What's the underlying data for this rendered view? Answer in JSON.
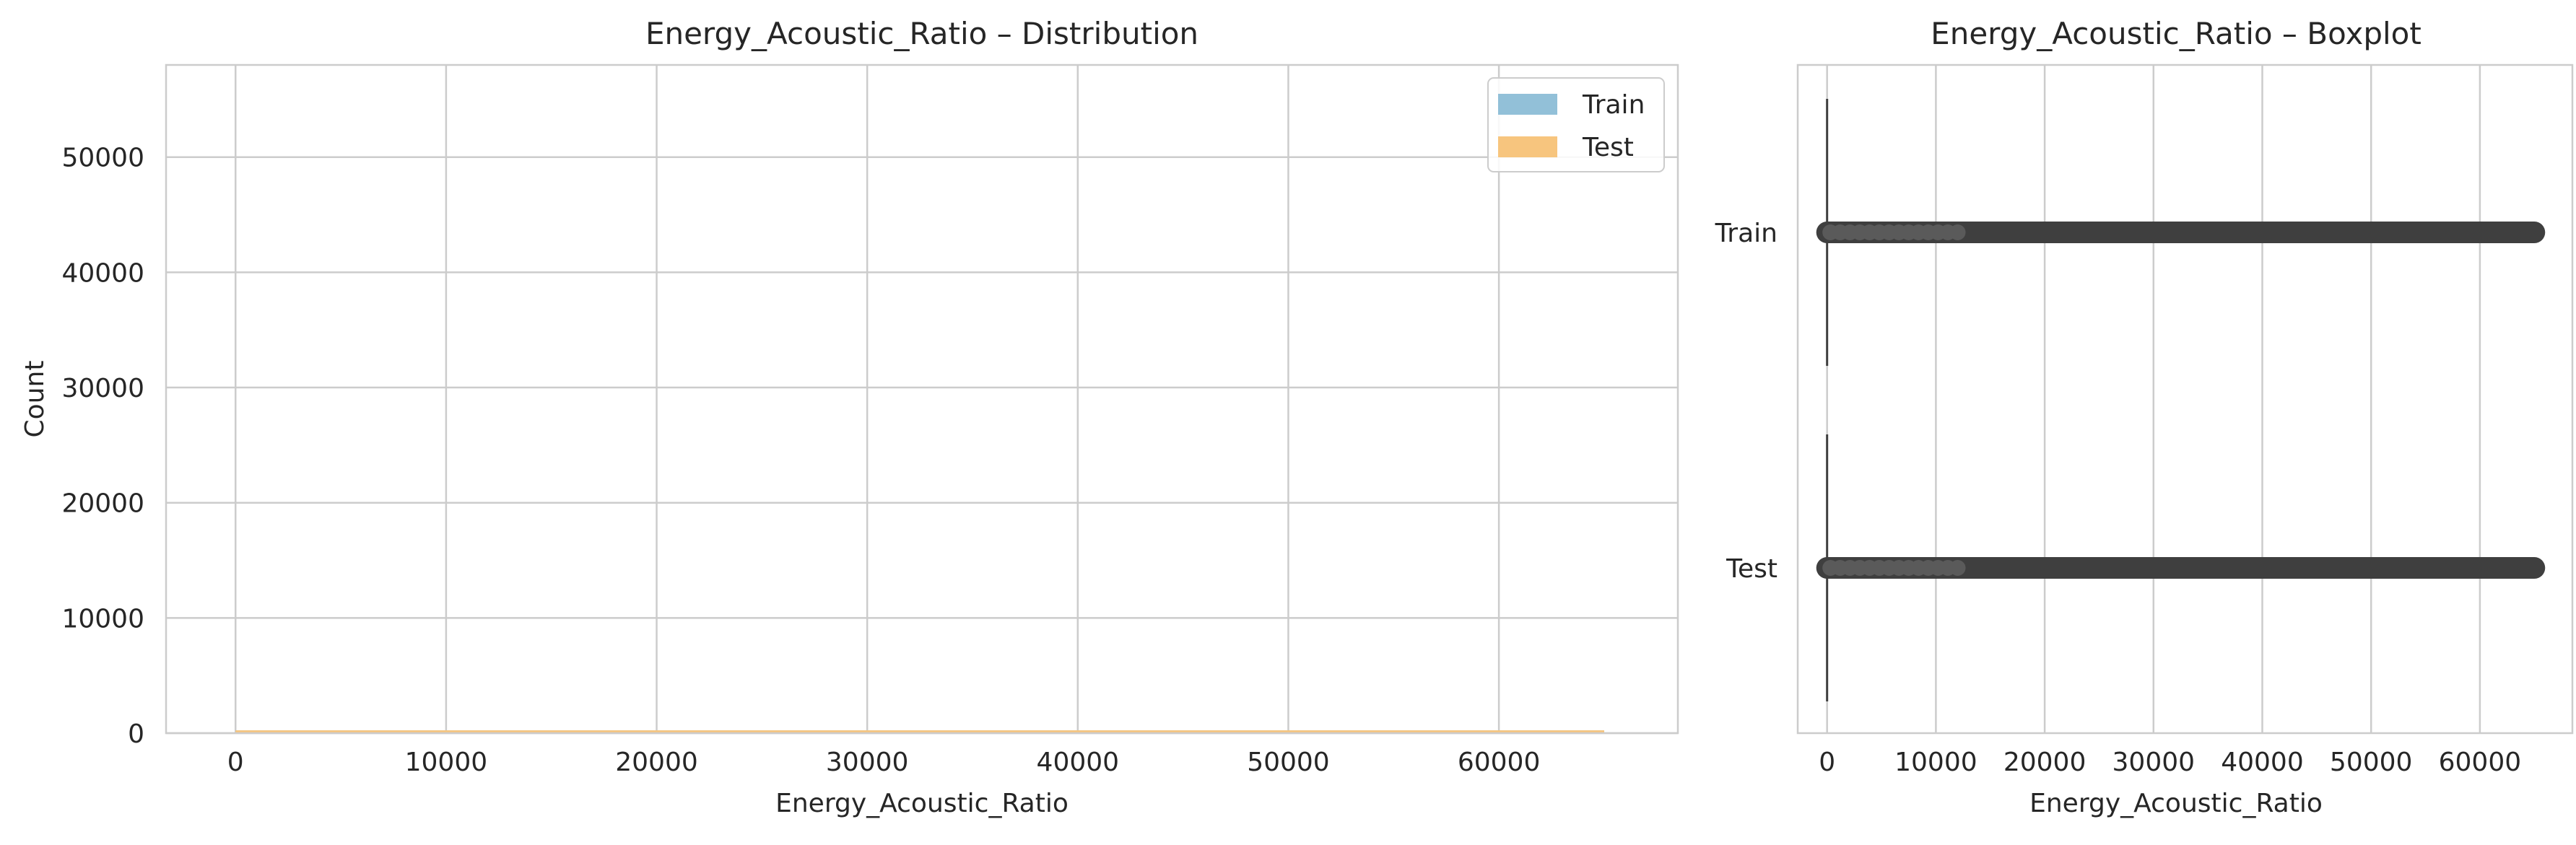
{
  "chart_data": [
    {
      "type": "histogram",
      "title": "Energy_Acoustic_Ratio – Distribution",
      "xlabel": "Energy_Acoustic_Ratio",
      "ylabel": "Count",
      "xlim": [
        -3300,
        68500
      ],
      "ylim": [
        0,
        58000
      ],
      "xticks": [
        0,
        10000,
        20000,
        30000,
        40000,
        50000,
        60000
      ],
      "xtick_labels": [
        "0",
        "10000",
        "20000",
        "30000",
        "40000",
        "50000",
        "60000"
      ],
      "yticks": [
        0,
        10000,
        20000,
        30000,
        40000,
        50000
      ],
      "ytick_labels": [
        "0",
        "10000",
        "20000",
        "30000",
        "40000",
        "50000"
      ],
      "grid": true,
      "legend_position": "top-right",
      "series": [
        {
          "name": "Train",
          "color": "#92c0d8",
          "range": [
            0,
            65000
          ],
          "approx_max_count": 250
        },
        {
          "name": "Test",
          "color": "#f7c57e",
          "range": [
            0,
            65000
          ],
          "approx_max_count": 250
        }
      ]
    },
    {
      "type": "boxplot",
      "orientation": "horizontal",
      "title": "Energy_Acoustic_Ratio – Boxplot",
      "xlabel": "Energy_Acoustic_Ratio",
      "xlim": [
        -2700,
        68500
      ],
      "xticks": [
        0,
        10000,
        20000,
        30000,
        40000,
        50000,
        60000
      ],
      "xtick_labels": [
        "0",
        "10000",
        "20000",
        "30000",
        "40000",
        "50000",
        "60000"
      ],
      "categories": [
        "Train",
        "Test"
      ],
      "grid": true,
      "series": [
        {
          "name": "Train",
          "q1": 0,
          "median": 0,
          "q3": 0,
          "whisker_low": 0,
          "whisker_high": 0,
          "outliers_range": [
            0,
            65000
          ],
          "outlier_color": "#3f3f3f"
        },
        {
          "name": "Test",
          "q1": 0,
          "median": 0,
          "q3": 0,
          "whisker_low": 0,
          "whisker_high": 0,
          "outliers_range": [
            0,
            65000
          ],
          "outlier_color": "#3f3f3f"
        }
      ]
    }
  ]
}
